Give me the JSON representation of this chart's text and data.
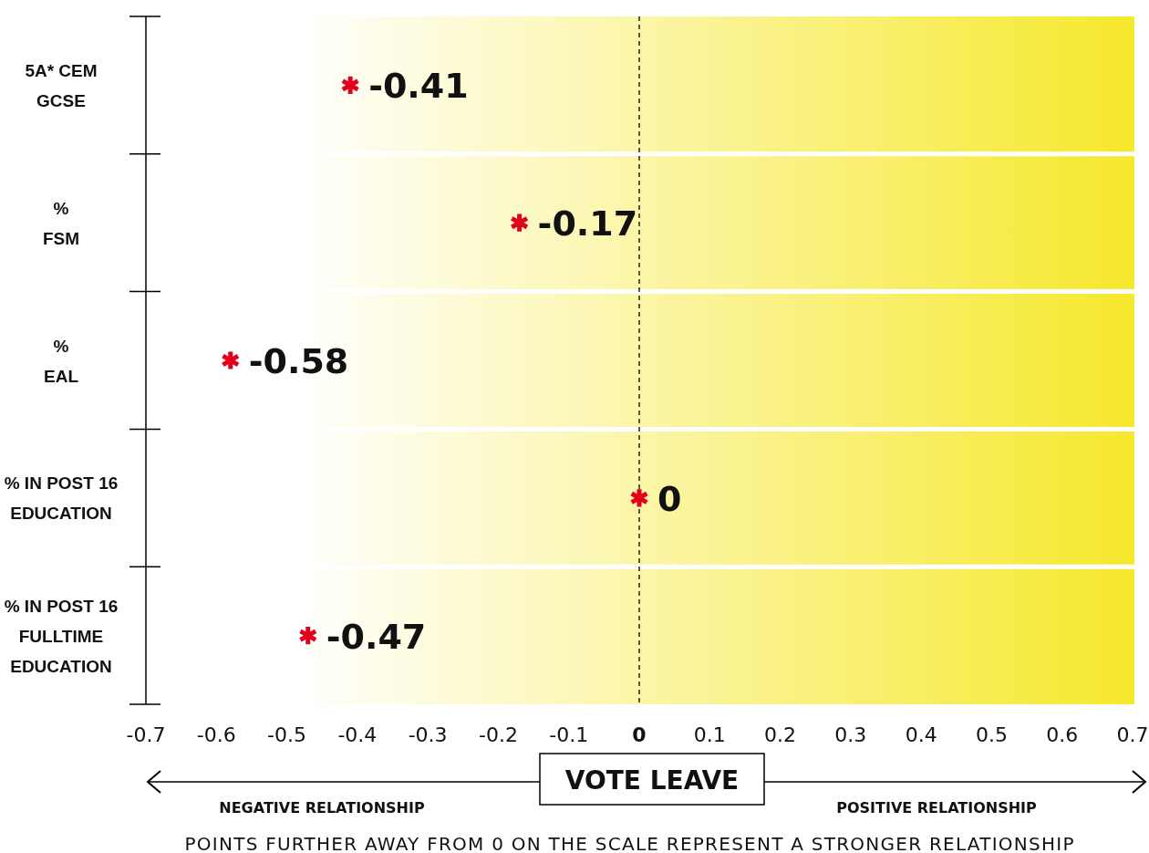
{
  "chart_data": {
    "type": "scatter",
    "orientation": "horizontal",
    "categories": [
      "5A* CEM\nGCSE",
      "%\nFSM",
      "%\nEAL",
      "% IN POST 16\nEDUCATION",
      "% IN POST 16\nFULLTIME\nEDUCATION"
    ],
    "series": [
      {
        "color": "#e2001a",
        "values": [
          -0.41,
          -0.17,
          -0.58,
          0,
          -0.47
        ]
      }
    ],
    "data_labels": true,
    "marker": "cross",
    "xlim": [
      -0.7,
      0.7
    ],
    "xticks": [
      -0.7,
      -0.6,
      -0.5,
      -0.4,
      -0.3,
      -0.2,
      -0.1,
      0,
      0.1,
      0.2,
      0.3,
      0.4,
      0.5,
      0.6,
      0.7
    ],
    "xlabel": "VOTE LEAVE",
    "ref_lines": [
      {
        "axis": "x",
        "value": 0,
        "color": "#000000",
        "line_style": "dashed"
      }
    ],
    "annotations": [
      "NEGATIVE RELATIONSHIP",
      "POSITIVE RELATIONSHIP",
      "POINTS FURTHER AWAY FROM 0 ON THE SCALE REPRESENT A STRONGER RELATIONSHIP"
    ]
  }
}
